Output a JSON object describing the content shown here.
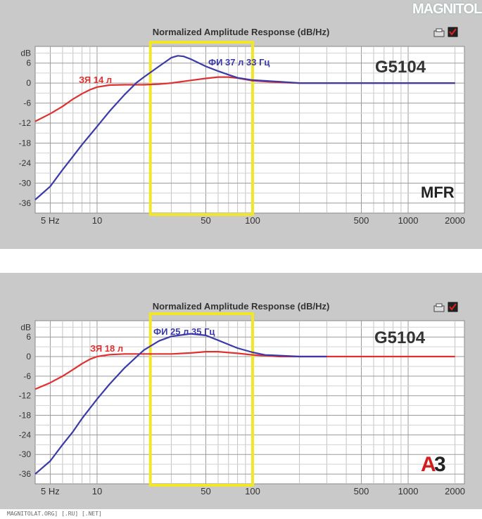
{
  "site_logo": "MAGNITOLA",
  "footer_site": "MAGNITOLAT.ORG] [.RU] [.NET]",
  "chart_data": [
    {
      "type": "line",
      "title": "Normalized Amplitude Response (dB/Hz)",
      "x_scale": "log",
      "xlim": [
        4,
        2300
      ],
      "ylim": [
        -39,
        11
      ],
      "x_tick_labels": [
        "5 Hz",
        "10",
        "50",
        "100",
        "500",
        "1000",
        "2000"
      ],
      "x_ticks": [
        5,
        10,
        50,
        100,
        500,
        1000,
        2000
      ],
      "y_tick_labels": [
        "dB",
        "6",
        "0",
        "-6",
        "-12",
        "-18",
        "-24",
        "-30",
        "-36"
      ],
      "y_ticks": [
        9,
        6,
        0,
        -6,
        -12,
        -18,
        -24,
        -30,
        -36
      ],
      "grid": true,
      "model_label": "G5104",
      "brand_label": "MFR",
      "highlight_range_hz": [
        22,
        100
      ],
      "series": [
        {
          "name": "ЗЯ 14 л",
          "color": "#e03030",
          "points": [
            [
              4,
              -11.5
            ],
            [
              5,
              -9.2
            ],
            [
              6,
              -7
            ],
            [
              7,
              -4.8
            ],
            [
              8,
              -3.2
            ],
            [
              9,
              -2
            ],
            [
              10,
              -1.2
            ],
            [
              12,
              -0.6
            ],
            [
              15,
              -0.5
            ],
            [
              20,
              -0.5
            ],
            [
              25,
              -0.3
            ],
            [
              30,
              0
            ],
            [
              40,
              0.8
            ],
            [
              50,
              1.4
            ],
            [
              60,
              1.8
            ],
            [
              70,
              1.8
            ],
            [
              80,
              1.5
            ],
            [
              100,
              0.7
            ],
            [
              150,
              0.2
            ],
            [
              200,
              0
            ],
            [
              500,
              0
            ],
            [
              1000,
              0
            ],
            [
              2000,
              0
            ]
          ]
        },
        {
          "name": "ФИ 37 л 33 Гц",
          "color": "#3a3aa8",
          "points": [
            [
              4,
              -35
            ],
            [
              5,
              -31
            ],
            [
              6,
              -26
            ],
            [
              7,
              -22
            ],
            [
              8,
              -18.5
            ],
            [
              10,
              -13
            ],
            [
              12,
              -8.5
            ],
            [
              15,
              -3.5
            ],
            [
              18,
              0.2
            ],
            [
              20,
              1.8
            ],
            [
              25,
              5
            ],
            [
              30,
              7.6
            ],
            [
              33,
              8.2
            ],
            [
              36,
              8
            ],
            [
              40,
              7.2
            ],
            [
              50,
              5
            ],
            [
              60,
              3.6
            ],
            [
              70,
              2.5
            ],
            [
              80,
              1.6
            ],
            [
              100,
              0.9
            ],
            [
              150,
              0.4
            ],
            [
              200,
              0
            ],
            [
              500,
              0
            ],
            [
              1000,
              0
            ],
            [
              2000,
              0
            ]
          ]
        }
      ]
    },
    {
      "type": "line",
      "title": "Normalized Amplitude Response (dB/Hz)",
      "x_scale": "log",
      "xlim": [
        4,
        2300
      ],
      "ylim": [
        -39,
        11
      ],
      "x_tick_labels": [
        "5 Hz",
        "10",
        "50",
        "100",
        "500",
        "1000",
        "2000"
      ],
      "x_ticks": [
        5,
        10,
        50,
        100,
        500,
        1000,
        2000
      ],
      "y_tick_labels": [
        "dB",
        "6",
        "0",
        "-6",
        "-12",
        "-18",
        "-24",
        "-30",
        "-36"
      ],
      "y_ticks": [
        9,
        6,
        0,
        -6,
        -12,
        -18,
        -24,
        -30,
        -36
      ],
      "grid": true,
      "model_label": "G5104",
      "brand_label": "A3",
      "highlight_range_hz": [
        22,
        100
      ],
      "series": [
        {
          "name": "ЗЯ 18 л",
          "color": "#e03030",
          "points": [
            [
              4,
              -10
            ],
            [
              5,
              -8
            ],
            [
              6,
              -6
            ],
            [
              7,
              -4
            ],
            [
              8,
              -2.2
            ],
            [
              9,
              -0.8
            ],
            [
              10,
              0
            ],
            [
              12,
              0.6
            ],
            [
              15,
              0.8
            ],
            [
              20,
              0.8
            ],
            [
              30,
              0.8
            ],
            [
              40,
              1.1
            ],
            [
              50,
              1.5
            ],
            [
              60,
              1.5
            ],
            [
              80,
              1
            ],
            [
              100,
              0.5
            ],
            [
              150,
              0
            ],
            [
              200,
              0
            ],
            [
              500,
              0
            ],
            [
              1000,
              0
            ],
            [
              2000,
              0
            ]
          ]
        },
        {
          "name": "ФИ 25 л 35 Гц",
          "color": "#3a3aa8",
          "points": [
            [
              4,
              -36
            ],
            [
              5,
              -32
            ],
            [
              6,
              -27
            ],
            [
              7,
              -23
            ],
            [
              8,
              -19
            ],
            [
              10,
              -13
            ],
            [
              12,
              -8.5
            ],
            [
              15,
              -3.5
            ],
            [
              18,
              0
            ],
            [
              20,
              2
            ],
            [
              25,
              4.8
            ],
            [
              30,
              6.2
            ],
            [
              40,
              7
            ],
            [
              50,
              6.5
            ],
            [
              60,
              5
            ],
            [
              70,
              3.7
            ],
            [
              80,
              2.6
            ],
            [
              100,
              1.3
            ],
            [
              120,
              0.5
            ],
            [
              200,
              0
            ],
            [
              300,
              0
            ]
          ]
        }
      ]
    }
  ]
}
